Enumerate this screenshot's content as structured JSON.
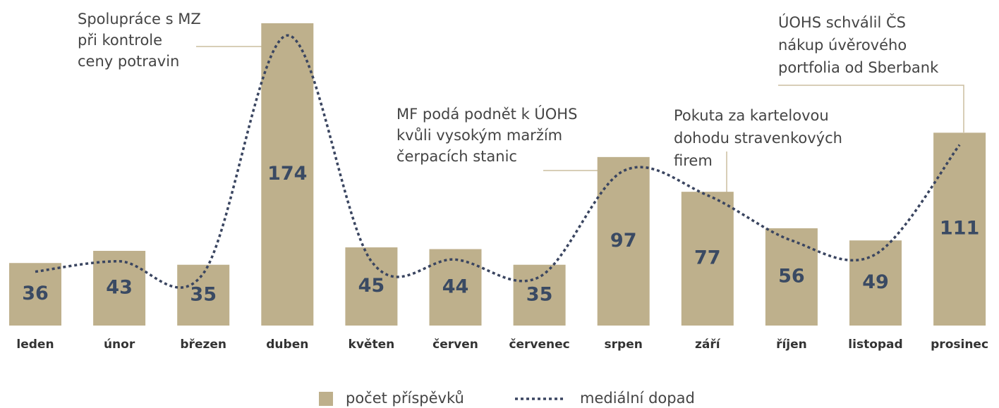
{
  "chart_data": {
    "type": "bar",
    "categories": [
      "leden",
      "únor",
      "březen",
      "duben",
      "květen",
      "červen",
      "červenec",
      "srpen",
      "září",
      "říjen",
      "listopad",
      "prosinec"
    ],
    "series": [
      {
        "name": "počet příspěvků",
        "color": "#beb08c",
        "values": [
          36,
          43,
          35,
          174,
          45,
          44,
          35,
          97,
          77,
          56,
          49,
          111
        ]
      },
      {
        "name": "mediální dopad",
        "type": "line",
        "color": "#3a4560",
        "values": [
          31,
          37,
          30,
          167,
          37,
          38,
          28,
          89,
          75,
          49,
          41,
          104
        ]
      }
    ],
    "annotations": [
      {
        "lines": [
          "Spolupráce s MZ",
          "při kontrole",
          "ceny potravin"
        ]
      },
      {
        "lines": [
          "MF podá podnět k ÚOHS",
          "kvůli vysokým maržím",
          "čerpacích stanic"
        ]
      },
      {
        "lines": [
          "Pokuta za kartelovou",
          "dohodu stravenkových",
          "firem"
        ]
      },
      {
        "lines": [
          "ÚOHS schválil ČS",
          "nákup úvěrového",
          "portfolia od Sberbank"
        ]
      }
    ]
  }
}
